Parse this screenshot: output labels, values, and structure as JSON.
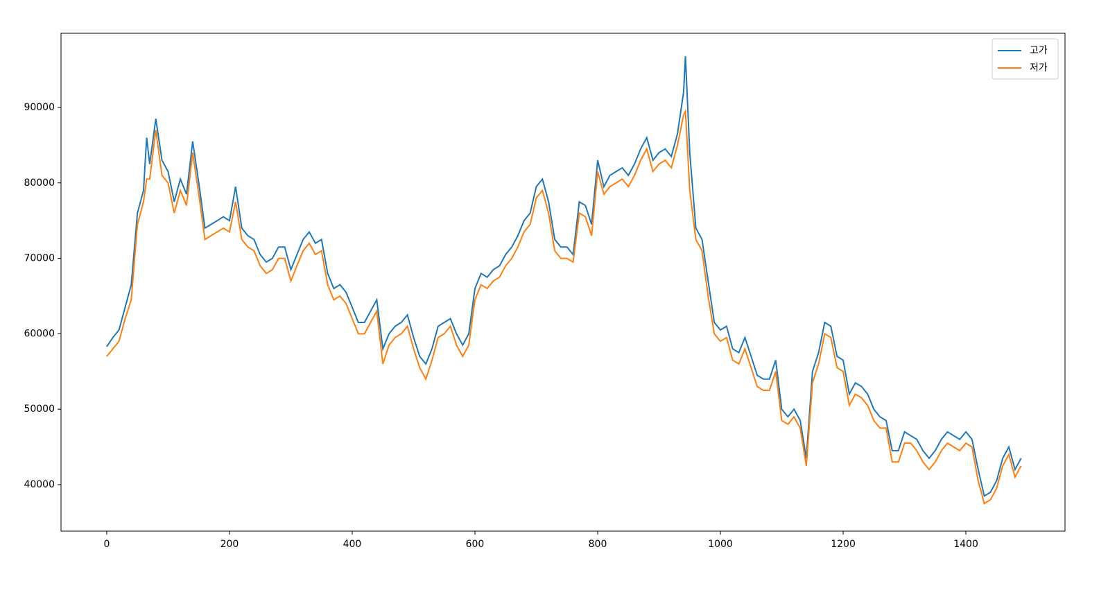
{
  "chart_data": {
    "type": "line",
    "x": [
      0,
      10,
      20,
      30,
      40,
      50,
      60,
      65,
      70,
      80,
      90,
      100,
      110,
      120,
      130,
      140,
      150,
      160,
      170,
      180,
      190,
      200,
      210,
      220,
      230,
      240,
      250,
      260,
      270,
      280,
      290,
      300,
      310,
      320,
      330,
      340,
      350,
      360,
      370,
      380,
      390,
      400,
      410,
      420,
      430,
      440,
      450,
      460,
      470,
      480,
      490,
      500,
      510,
      520,
      530,
      540,
      550,
      560,
      570,
      580,
      590,
      600,
      610,
      620,
      630,
      640,
      650,
      660,
      670,
      680,
      690,
      700,
      710,
      720,
      730,
      740,
      750,
      760,
      770,
      780,
      790,
      800,
      810,
      820,
      830,
      840,
      850,
      860,
      870,
      880,
      890,
      900,
      910,
      920,
      930,
      940,
      943,
      950,
      960,
      970,
      980,
      990,
      1000,
      1010,
      1020,
      1030,
      1040,
      1050,
      1060,
      1070,
      1080,
      1090,
      1100,
      1110,
      1120,
      1130,
      1140,
      1150,
      1160,
      1170,
      1180,
      1190,
      1200,
      1210,
      1220,
      1230,
      1240,
      1250,
      1260,
      1270,
      1280,
      1290,
      1300,
      1310,
      1320,
      1330,
      1340,
      1350,
      1360,
      1370,
      1380,
      1390,
      1400,
      1410,
      1420,
      1430,
      1440,
      1450,
      1460,
      1470,
      1480,
      1490
    ],
    "series": [
      {
        "name": "고가",
        "color": "#1f77b4",
        "values": [
          58300,
          59500,
          60500,
          63500,
          66500,
          76000,
          79000,
          86000,
          82500,
          88500,
          83000,
          81500,
          77500,
          80500,
          78500,
          85500,
          80000,
          74000,
          74500,
          75000,
          75500,
          75000,
          79500,
          74000,
          73000,
          72500,
          70500,
          69500,
          70000,
          71500,
          71500,
          68500,
          70500,
          72500,
          73500,
          72000,
          72500,
          68000,
          66000,
          66500,
          65500,
          63500,
          61500,
          61500,
          63000,
          64500,
          58000,
          60000,
          61000,
          61500,
          62500,
          59500,
          57000,
          56000,
          58000,
          61000,
          61500,
          62000,
          60000,
          58500,
          60000,
          66000,
          68000,
          67500,
          68500,
          69000,
          70500,
          71500,
          73000,
          75000,
          76000,
          79500,
          80500,
          77500,
          72500,
          71500,
          71500,
          70500,
          77500,
          77000,
          74500,
          83000,
          79500,
          81000,
          81500,
          82000,
          81000,
          82500,
          84500,
          86000,
          83000,
          84000,
          84500,
          83500,
          86500,
          92000,
          96800,
          84000,
          74000,
          72500,
          67000,
          61500,
          60500,
          61000,
          58000,
          57500,
          59500,
          57000,
          54500,
          54000,
          54000,
          56500,
          50000,
          49000,
          50000,
          48500,
          43500,
          55000,
          57500,
          61500,
          61000,
          57000,
          56500,
          52000,
          53500,
          53000,
          52000,
          50000,
          49000,
          48500,
          44500,
          44500,
          47000,
          46500,
          46000,
          44500,
          43500,
          44500,
          46000,
          47000,
          46500,
          46000,
          47000,
          46000,
          42000,
          38500,
          39000,
          40500,
          43500,
          45000,
          42000,
          43500
        ]
      },
      {
        "name": "저가",
        "color": "#ff7f0e",
        "values": [
          57000,
          58000,
          59000,
          62000,
          64500,
          74500,
          77500,
          80500,
          80500,
          87000,
          81000,
          80000,
          76000,
          79000,
          77000,
          84000,
          78500,
          72500,
          73000,
          73500,
          74000,
          73500,
          77500,
          72500,
          71500,
          71000,
          69000,
          68000,
          68500,
          70000,
          70000,
          67000,
          69000,
          71000,
          72000,
          70500,
          71000,
          66500,
          64500,
          65000,
          64000,
          62000,
          60000,
          60000,
          61500,
          63000,
          56000,
          58500,
          59500,
          60000,
          61000,
          58000,
          55500,
          54000,
          56500,
          59500,
          60000,
          61000,
          58500,
          57000,
          58500,
          64500,
          66500,
          66000,
          67000,
          67500,
          69000,
          70000,
          71500,
          73500,
          74500,
          78000,
          79000,
          76000,
          71000,
          70000,
          70000,
          69500,
          76000,
          75500,
          73000,
          81500,
          78500,
          79500,
          80000,
          80500,
          79500,
          81000,
          83000,
          84500,
          81500,
          82500,
          83000,
          82000,
          85000,
          89000,
          89500,
          79000,
          72500,
          71000,
          65000,
          60000,
          59000,
          59500,
          56500,
          56000,
          58000,
          55500,
          53000,
          52500,
          52500,
          55000,
          48500,
          48000,
          49000,
          47500,
          42500,
          53500,
          56000,
          60000,
          59500,
          55500,
          55000,
          50500,
          52000,
          51500,
          50500,
          48500,
          47500,
          47500,
          43000,
          43000,
          45500,
          45500,
          44500,
          43000,
          42000,
          43000,
          44500,
          45500,
          45000,
          44500,
          45500,
          45000,
          40500,
          37500,
          38000,
          39500,
          42500,
          44000,
          41000,
          42500
        ]
      }
    ],
    "xlim": [
      -74.5,
      1561.5
    ],
    "ylim": [
      33840,
      99830
    ],
    "xticks": [
      0,
      200,
      400,
      600,
      800,
      1000,
      1200,
      1400
    ],
    "yticks": [
      40000,
      50000,
      60000,
      70000,
      80000,
      90000
    ],
    "legend": "upper right"
  }
}
